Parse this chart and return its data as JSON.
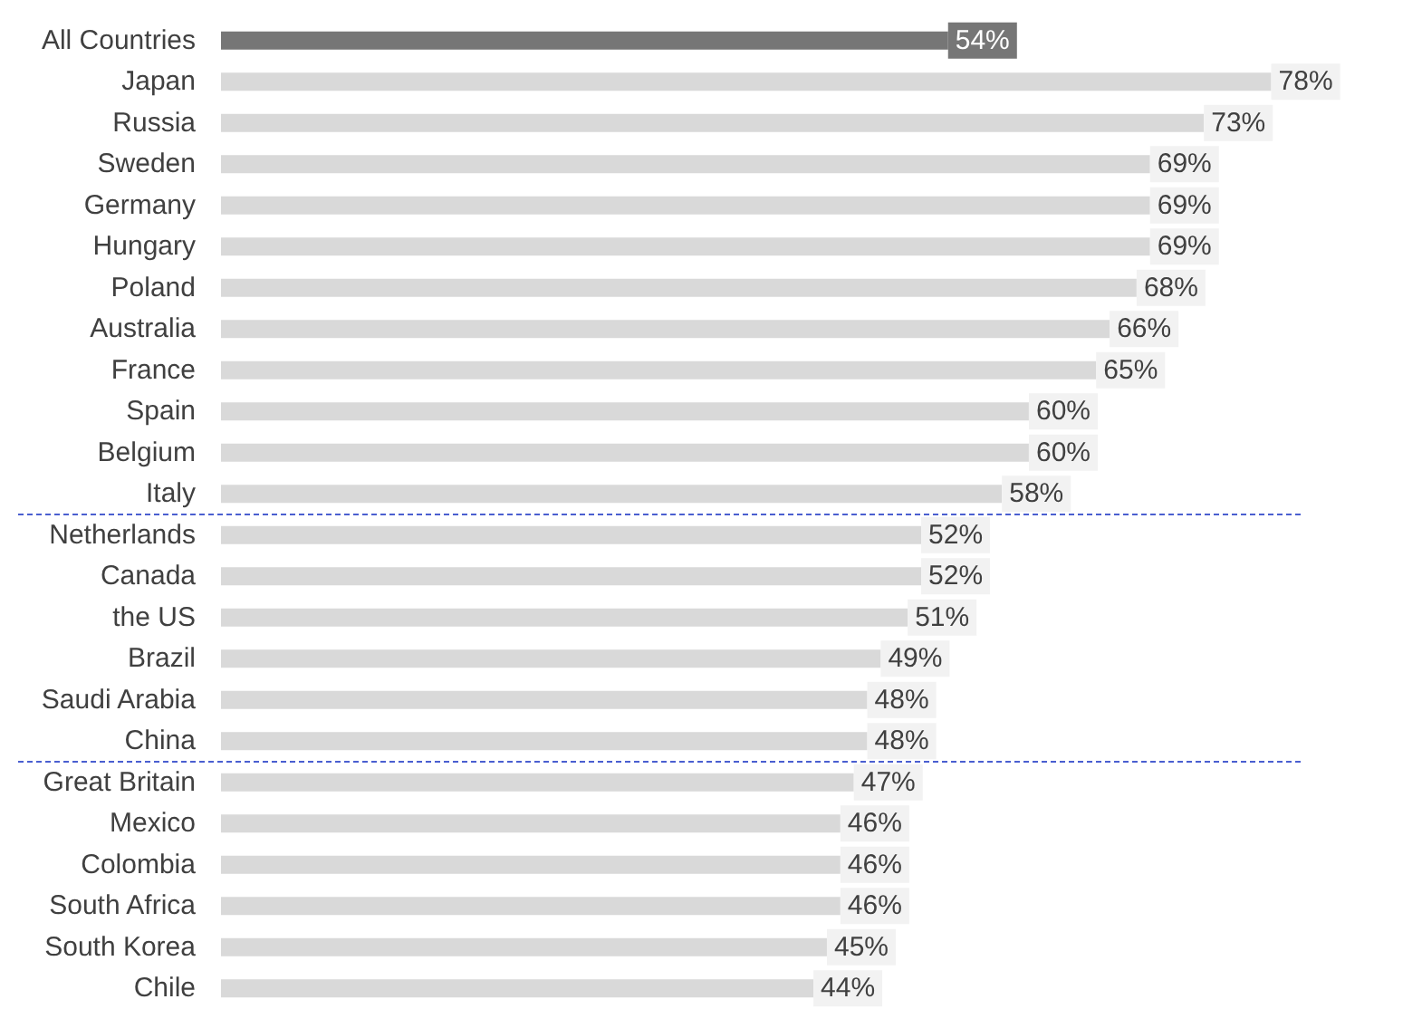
{
  "chart_data": {
    "type": "bar",
    "orientation": "horizontal",
    "categories": [
      "All Countries",
      "Japan",
      "Russia",
      "Sweden",
      "Germany",
      "Hungary",
      "Poland",
      "Australia",
      "France",
      "Spain",
      "Belgium",
      "Italy",
      "Netherlands",
      "Canada",
      "the US",
      "Brazil",
      "Saudi Arabia",
      "China",
      "Great Britain",
      "Mexico",
      "Colombia",
      "South Africa",
      "South Korea",
      "Chile"
    ],
    "values": [
      54,
      78,
      73,
      69,
      69,
      69,
      68,
      66,
      65,
      60,
      60,
      58,
      52,
      52,
      51,
      49,
      48,
      48,
      47,
      46,
      46,
      46,
      45,
      44
    ],
    "value_labels": [
      "54%",
      "78%",
      "73%",
      "69%",
      "69%",
      "69%",
      "68%",
      "66%",
      "65%",
      "60%",
      "60%",
      "58%",
      "52%",
      "52%",
      "51%",
      "49%",
      "48%",
      "48%",
      "47%",
      "46%",
      "46%",
      "46%",
      "45%",
      "44%"
    ],
    "colors": [
      "#767676",
      "#d9d9d9",
      "#d9d9d9",
      "#d9d9d9",
      "#d9d9d9",
      "#d9d9d9",
      "#d9d9d9",
      "#d9d9d9",
      "#d9d9d9",
      "#d9d9d9",
      "#d9d9d9",
      "#d9d9d9",
      "#d9d9d9",
      "#d9d9d9",
      "#d9d9d9",
      "#d9d9d9",
      "#d9d9d9",
      "#d9d9d9",
      "#d9d9d9",
      "#d9d9d9",
      "#d9d9d9",
      "#d9d9d9",
      "#d9d9d9",
      "#d9d9d9"
    ],
    "ref_lines": [
      {
        "axis": "y",
        "value": "Italy",
        "color": "#4a5fd0",
        "line_style": "dashed"
      },
      {
        "axis": "y",
        "value": "China",
        "color": "#4a5fd0",
        "line_style": "dashed"
      }
    ],
    "grid": false
  }
}
